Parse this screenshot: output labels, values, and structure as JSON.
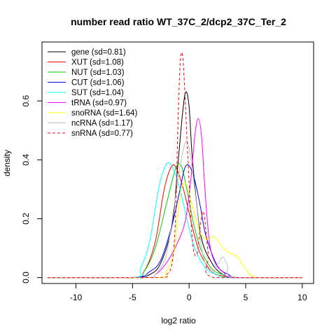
{
  "chart_data": {
    "type": "line",
    "title": "number read ratio WT_37C_2/dcp2_37C_Ter_2",
    "xlabel": "log2 ratio",
    "ylabel": "density",
    "xlim": [
      -13,
      11
    ],
    "ylim": [
      -0.02,
      0.8
    ],
    "xticks": [
      -10,
      -5,
      0,
      5,
      10
    ],
    "yticks": [
      0.0,
      0.2,
      0.4,
      0.6
    ],
    "xtick_labels": [
      "-10",
      "-5",
      "0",
      "5",
      "10"
    ],
    "ytick_labels": [
      "0.0",
      "0.2",
      "0.4",
      "0.6"
    ],
    "legend_position": "top-left",
    "grid": false,
    "series": [
      {
        "name": "gene (sd=0.81)",
        "color": "#000000",
        "dash": false,
        "x": [
          -12.5,
          -5,
          -3.5,
          -2.5,
          -1.5,
          -1.0,
          -0.6,
          -0.3,
          0.0,
          0.3,
          1.0,
          2.0,
          3.0,
          4.0,
          10
        ],
        "y": [
          0,
          0,
          0.01,
          0.05,
          0.18,
          0.38,
          0.55,
          0.63,
          0.58,
          0.4,
          0.15,
          0.05,
          0.01,
          0,
          0
        ]
      },
      {
        "name": "XUT (sd=1.08)",
        "color": "#ff0000",
        "dash": false,
        "x": [
          -12.5,
          -5,
          -4,
          -3,
          -2.2,
          -1.5,
          -1.0,
          -0.5,
          0.0,
          0.5,
          1.0,
          2.0,
          3.0,
          4.0,
          10
        ],
        "y": [
          0,
          0,
          0.02,
          0.12,
          0.3,
          0.38,
          0.36,
          0.3,
          0.22,
          0.14,
          0.08,
          0.02,
          0.005,
          0,
          0
        ]
      },
      {
        "name": "NUT (sd=1.03)",
        "color": "#00cd00",
        "dash": false,
        "x": [
          -12.5,
          -5,
          -4,
          -3,
          -2,
          -1.2,
          -0.7,
          -0.2,
          0.3,
          1.0,
          2.0,
          3.0,
          4.0,
          10
        ],
        "y": [
          0,
          0,
          0.02,
          0.1,
          0.25,
          0.37,
          0.38,
          0.3,
          0.2,
          0.1,
          0.03,
          0.01,
          0,
          0
        ]
      },
      {
        "name": "CUT (sd=1.06)",
        "color": "#0000ff",
        "dash": false,
        "x": [
          -12.5,
          -5,
          -3.5,
          -2.5,
          -1.5,
          -0.8,
          -0.4,
          0.0,
          0.5,
          1.0,
          1.5,
          2.5,
          3.5,
          4.5,
          10
        ],
        "y": [
          0,
          0,
          0.02,
          0.06,
          0.18,
          0.3,
          0.37,
          0.38,
          0.33,
          0.24,
          0.14,
          0.04,
          0.01,
          0,
          0
        ]
      },
      {
        "name": "SUT (sd=1.04)",
        "color": "#00ffff",
        "dash": false,
        "x": [
          -12.5,
          -5,
          -4.3,
          -3.5,
          -2.7,
          -2.2,
          -1.8,
          -1.3,
          -0.8,
          -0.2,
          0.5,
          1.5,
          2.5,
          3.5,
          10
        ],
        "y": [
          0,
          0,
          0.03,
          0.12,
          0.3,
          0.37,
          0.39,
          0.36,
          0.3,
          0.2,
          0.1,
          0.03,
          0.01,
          0,
          0
        ]
      },
      {
        "name": "tRNA (sd=0.97)",
        "color": "#ff00ff",
        "dash": false,
        "x": [
          -12.5,
          -4,
          -3,
          -2,
          -1,
          -0.3,
          0.2,
          0.5,
          0.8,
          1.1,
          1.4,
          1.8,
          2.3,
          3.0,
          4.0,
          10
        ],
        "y": [
          0,
          0,
          0.01,
          0.05,
          0.12,
          0.2,
          0.35,
          0.48,
          0.54,
          0.48,
          0.3,
          0.12,
          0.05,
          0.02,
          0,
          0
        ]
      },
      {
        "name": "snoRNA (sd=1.64)",
        "color": "#ffff00",
        "dash": false,
        "x": [
          -12.5,
          -3,
          -2,
          -1.3,
          -0.8,
          -0.3,
          0.3,
          1.0,
          1.6,
          2.2,
          2.8,
          3.3,
          3.8,
          4.3,
          5.0,
          6.0,
          10
        ],
        "y": [
          0,
          0,
          0.02,
          0.1,
          0.28,
          0.32,
          0.24,
          0.15,
          0.13,
          0.14,
          0.11,
          0.09,
          0.08,
          0.07,
          0.03,
          0,
          0
        ]
      },
      {
        "name": "ncRNA (sd=1.17)",
        "color": "#bebebe",
        "dash": false,
        "x": [
          -12.5,
          -4,
          -3,
          -2,
          -1.3,
          -0.7,
          -0.3,
          0.0,
          0.5,
          1.2,
          2.0,
          2.6,
          3.0,
          3.4,
          4.0,
          10
        ],
        "y": [
          0,
          0,
          0.01,
          0.08,
          0.25,
          0.4,
          0.46,
          0.44,
          0.3,
          0.08,
          0.02,
          0.05,
          0.07,
          0.04,
          0,
          0
        ]
      },
      {
        "name": "snRNA (sd=0.77)",
        "color": "#ff0000",
        "dash": true,
        "x": [
          -12.5,
          -3,
          -2,
          -1.5,
          -1.2,
          -1.0,
          -0.8,
          -0.6,
          -0.4,
          -0.1,
          0.3,
          0.7,
          1.0,
          1.3,
          1.7,
          2.2,
          10
        ],
        "y": [
          0,
          0,
          0.01,
          0.05,
          0.2,
          0.5,
          0.72,
          0.76,
          0.65,
          0.4,
          0.12,
          0.08,
          0.18,
          0.22,
          0.08,
          0,
          0
        ]
      }
    ]
  }
}
